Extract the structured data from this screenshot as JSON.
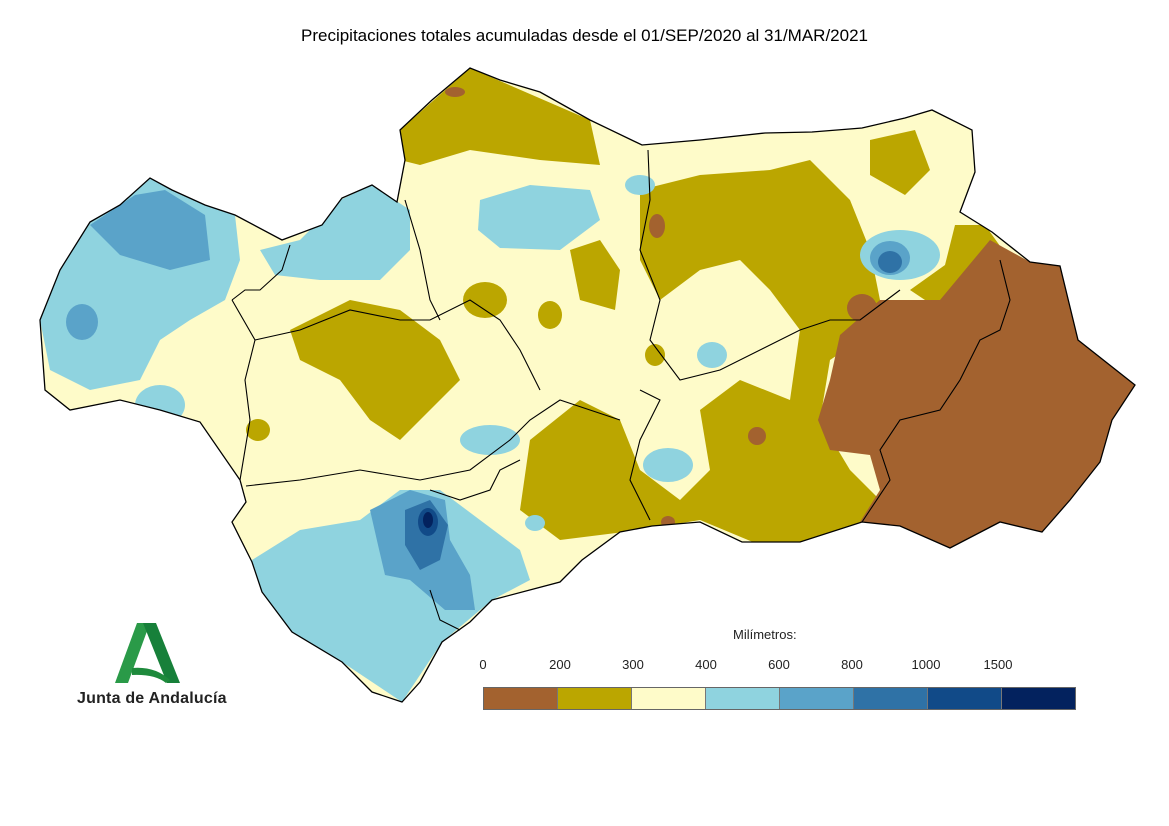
{
  "title": "Precipitaciones totales acumuladas desde el 01/SEP/2020 al 31/MAR/2021",
  "legend": {
    "title": "Milímetros:",
    "ticks": [
      "0",
      "200",
      "300",
      "400",
      "600",
      "800",
      "1000",
      "1500"
    ],
    "colors": [
      "#a3622f",
      "#bba600",
      "#fefbc9",
      "#8fd3df",
      "#5aa3c9",
      "#2f72a6",
      "#114a88",
      "#03225e"
    ]
  },
  "logo": {
    "text": "Junta de Andalucía",
    "color": "#1e8a3c"
  }
}
